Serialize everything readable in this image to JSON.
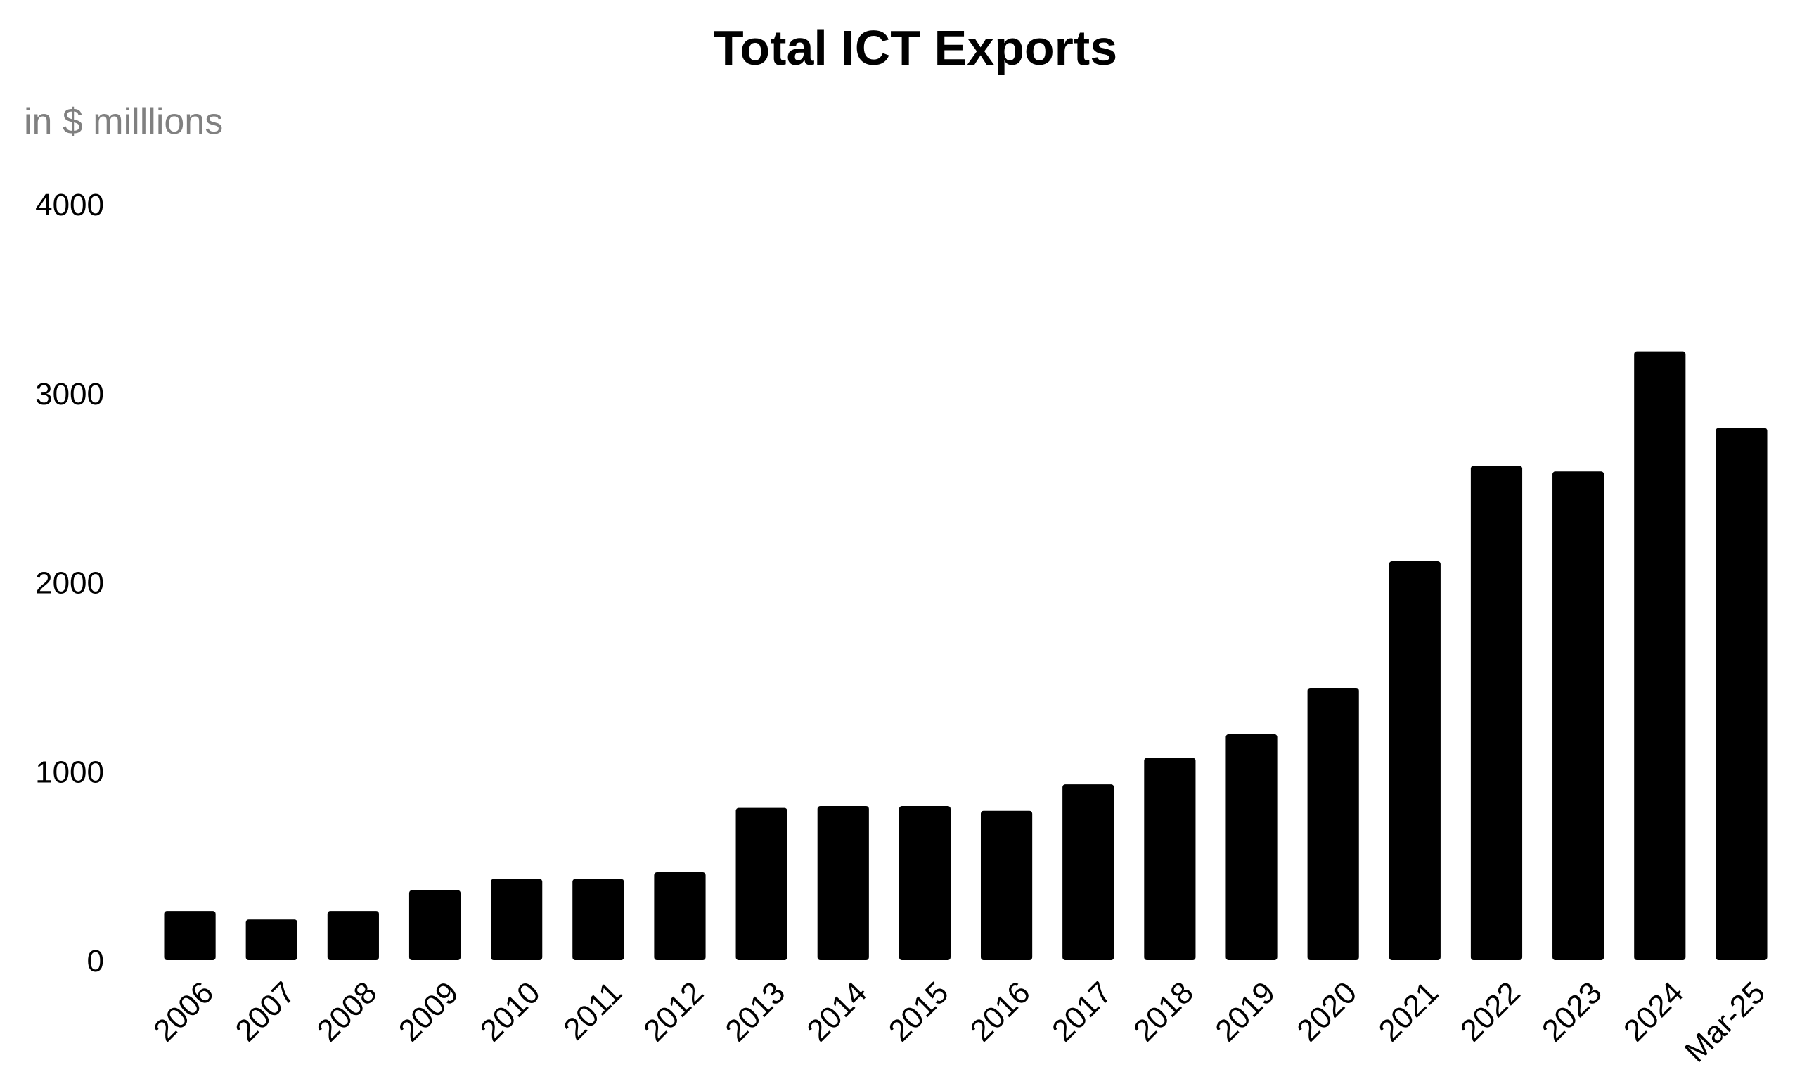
{
  "chart_data": {
    "type": "bar",
    "title": "Total ICT Exports",
    "subtitle": "in $ milllions",
    "xlabel": "",
    "ylabel": "",
    "categories": [
      "2006",
      "2007",
      "2008",
      "2009",
      "2010",
      "2011",
      "2012",
      "2013",
      "2014",
      "2015",
      "2016",
      "2017",
      "2018",
      "2019",
      "2020",
      "2021",
      "2022",
      "2023",
      "2024",
      "Mar-25"
    ],
    "values": [
      260,
      215,
      260,
      370,
      430,
      430,
      465,
      805,
      815,
      815,
      790,
      930,
      1070,
      1195,
      1440,
      2110,
      2615,
      2585,
      3220,
      2815
    ],
    "ylim": [
      0,
      4000
    ],
    "yticks": [
      0,
      1000,
      2000,
      3000,
      4000
    ],
    "grid": false,
    "legend": "none",
    "bar_color": "#000000"
  }
}
